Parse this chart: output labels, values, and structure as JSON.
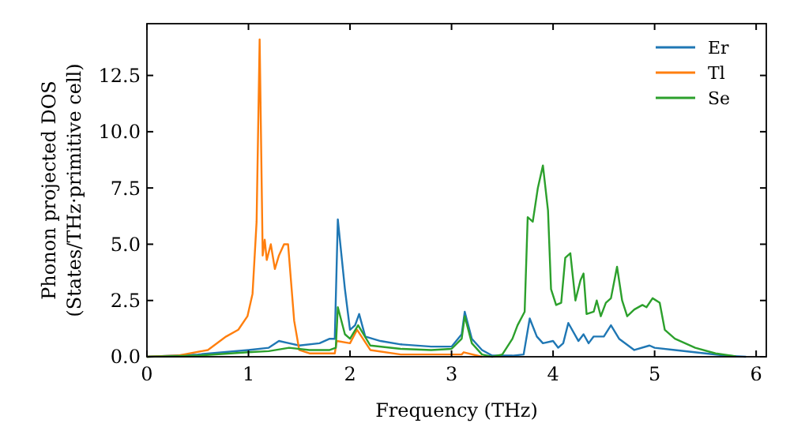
{
  "chart_data": {
    "type": "line",
    "xlabel": "Frequency (THz)",
    "ylabel": "Phonon projected DOS\n(States/THz·primitive cell)",
    "xlim": [
      0,
      6.1
    ],
    "ylim": [
      0,
      14.8
    ],
    "xticks": [
      0,
      1,
      2,
      3,
      4,
      5,
      6
    ],
    "yticks": [
      {
        "value": 0,
        "label": "0.0"
      },
      {
        "value": 2.5,
        "label": "2.5"
      },
      {
        "value": 5,
        "label": "5.0"
      },
      {
        "value": 7.5,
        "label": "7.5"
      },
      {
        "value": 10,
        "label": "10.0"
      },
      {
        "value": 12.5,
        "label": "12.5"
      }
    ],
    "legend": "top right",
    "grid": false,
    "series": [
      {
        "name": "Er",
        "color": "#1f77b4",
        "x": [
          0,
          0.5,
          1.0,
          1.2,
          1.3,
          1.4,
          1.5,
          1.7,
          1.8,
          1.85,
          1.88,
          1.95,
          2.0,
          2.05,
          2.09,
          2.15,
          2.3,
          2.5,
          2.8,
          3.0,
          3.1,
          3.13,
          3.2,
          3.3,
          3.4,
          3.6,
          3.71,
          3.77,
          3.84,
          3.9,
          4.0,
          4.05,
          4.1,
          4.15,
          4.25,
          4.3,
          4.35,
          4.4,
          4.5,
          4.57,
          4.65,
          4.8,
          4.95,
          5.0,
          5.2,
          5.5,
          5.7,
          5.9
        ],
        "values": [
          0,
          0.1,
          0.3,
          0.4,
          0.7,
          0.6,
          0.5,
          0.6,
          0.8,
          0.8,
          6.1,
          3.0,
          1.2,
          1.4,
          1.9,
          0.9,
          0.7,
          0.55,
          0.45,
          0.45,
          1.0,
          2.0,
          0.8,
          0.3,
          0.05,
          0.05,
          0.1,
          1.7,
          0.9,
          0.6,
          0.7,
          0.4,
          0.6,
          1.5,
          0.7,
          1.0,
          0.6,
          0.9,
          0.9,
          1.4,
          0.8,
          0.3,
          0.5,
          0.4,
          0.3,
          0.15,
          0.05,
          0
        ]
      },
      {
        "name": "Tl",
        "color": "#ff7f0e",
        "x": [
          0,
          0.3,
          0.6,
          0.78,
          0.9,
          0.99,
          1.04,
          1.08,
          1.11,
          1.14,
          1.16,
          1.18,
          1.22,
          1.26,
          1.3,
          1.35,
          1.39,
          1.45,
          1.5,
          1.6,
          1.85,
          1.87,
          2.0,
          2.07,
          2.2,
          2.5,
          3.1,
          3.12,
          3.3
        ],
        "values": [
          0,
          0.05,
          0.3,
          0.9,
          1.2,
          1.8,
          2.8,
          6.0,
          14.1,
          4.5,
          5.2,
          4.3,
          5.0,
          3.9,
          4.5,
          5.0,
          5.0,
          1.6,
          0.3,
          0.15,
          0.15,
          0.7,
          0.6,
          1.2,
          0.3,
          0.1,
          0.1,
          0.2,
          0
        ]
      },
      {
        "name": "Se",
        "color": "#2ca02c",
        "x": [
          0,
          0.5,
          1.0,
          1.2,
          1.4,
          1.6,
          1.8,
          1.86,
          1.88,
          1.95,
          2.0,
          2.08,
          2.2,
          2.5,
          2.8,
          3.0,
          3.1,
          3.13,
          3.2,
          3.3,
          3.4,
          3.5,
          3.6,
          3.65,
          3.72,
          3.75,
          3.8,
          3.85,
          3.9,
          3.95,
          3.98,
          4.03,
          4.08,
          4.12,
          4.17,
          4.22,
          4.27,
          4.3,
          4.33,
          4.4,
          4.43,
          4.47,
          4.52,
          4.57,
          4.63,
          4.68,
          4.73,
          4.8,
          4.88,
          4.92,
          4.98,
          5.05,
          5.1,
          5.2,
          5.4,
          5.6,
          5.8
        ],
        "values": [
          0,
          0.05,
          0.2,
          0.25,
          0.4,
          0.3,
          0.3,
          0.4,
          2.2,
          1.0,
          0.8,
          1.4,
          0.5,
          0.35,
          0.3,
          0.35,
          0.8,
          1.8,
          0.6,
          0.1,
          0,
          0.1,
          0.8,
          1.4,
          2.0,
          6.2,
          6.0,
          7.5,
          8.5,
          6.5,
          3.0,
          2.3,
          2.4,
          4.4,
          4.6,
          2.5,
          3.4,
          3.7,
          1.9,
          2.0,
          2.5,
          1.8,
          2.4,
          2.6,
          4.0,
          2.5,
          1.8,
          2.1,
          2.3,
          2.2,
          2.6,
          2.4,
          1.2,
          0.8,
          0.4,
          0.15,
          0.02
        ]
      }
    ]
  }
}
